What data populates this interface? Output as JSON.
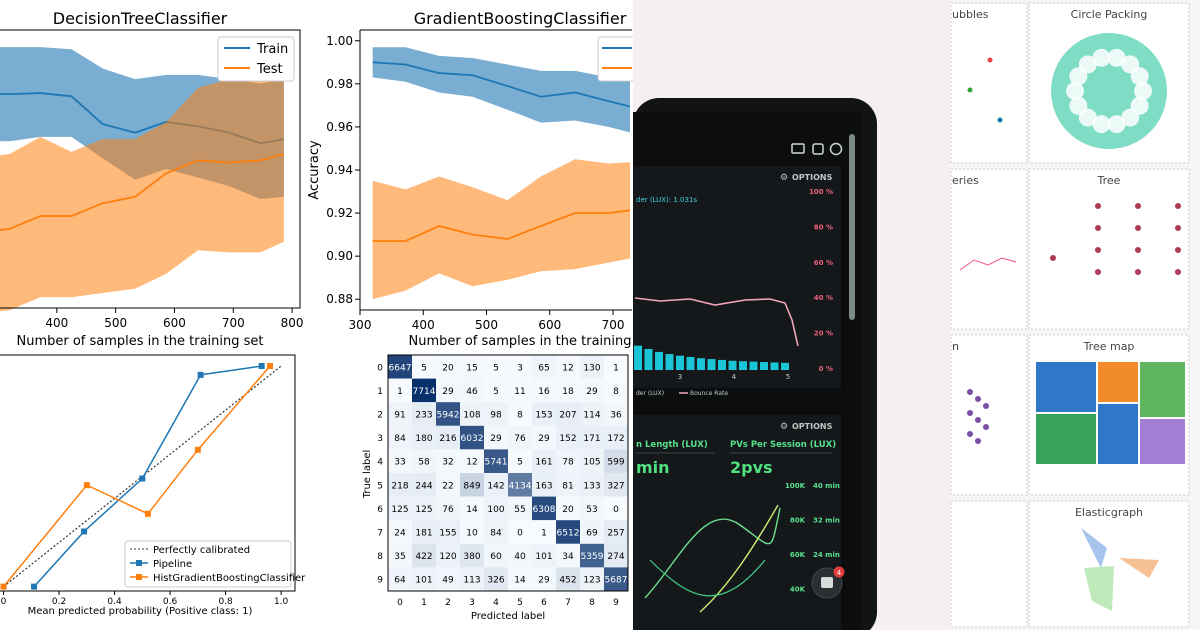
{
  "chart_data": [
    {
      "type": "line",
      "title": "DecisionTreeClassifier",
      "xlabel": "Number of samples in the training set",
      "xlim": [
        300,
        810
      ],
      "ylim": [
        0.875,
        1.005
      ],
      "x": [
        260,
        320,
        372,
        425,
        478,
        533,
        586,
        640,
        693,
        746,
        786
      ],
      "xticks": [
        400,
        500,
        600,
        700,
        800
      ],
      "series": [
        {
          "name": "Train",
          "color": "#1f77b4",
          "mean": [
            0.975,
            0.975,
            0.9755,
            0.974,
            0.961,
            0.957,
            0.962,
            0.96,
            0.957,
            0.952,
            0.954
          ],
          "upper": [
            0.997,
            0.997,
            0.997,
            0.996,
            0.987,
            0.982,
            0.984,
            0.984,
            0.982,
            0.98,
            0.982
          ],
          "lower": [
            0.953,
            0.953,
            0.955,
            0.955,
            0.945,
            0.935,
            0.94,
            0.936,
            0.932,
            0.926,
            0.927
          ]
        },
        {
          "name": "Test",
          "color": "#ff7f0e",
          "mean": [
            0.91,
            0.912,
            0.918,
            0.918,
            0.924,
            0.927,
            0.938,
            0.944,
            0.943,
            0.944,
            0.947
          ],
          "upper": [
            0.945,
            0.947,
            0.955,
            0.948,
            0.954,
            0.954,
            0.962,
            0.978,
            0.982,
            0.988,
            0.996
          ],
          "lower": [
            0.872,
            0.874,
            0.88,
            0.88,
            0.882,
            0.884,
            0.891,
            0.902,
            0.901,
            0.901,
            0.906
          ]
        }
      ]
    },
    {
      "type": "line",
      "title": "GradientBoostingClassifier",
      "xlabel": "Number of samples in the training set",
      "ylabel": "Accuracy",
      "xlim": [
        300,
        730
      ],
      "ylim": [
        0.875,
        1.005
      ],
      "x": [
        320,
        372,
        425,
        478,
        533,
        586,
        640,
        693,
        746
      ],
      "xticks": [
        300,
        400,
        500,
        600,
        700
      ],
      "yticks": [
        0.88,
        0.9,
        0.92,
        0.94,
        0.96,
        0.98,
        1.0
      ],
      "series": [
        {
          "name": "Train",
          "color": "#1f77b4",
          "mean": [
            0.99,
            0.989,
            0.985,
            0.984,
            0.979,
            0.974,
            0.976,
            0.972,
            0.968
          ],
          "upper": [
            0.997,
            0.997,
            0.993,
            0.992,
            0.989,
            0.986,
            0.986,
            0.983,
            0.98
          ],
          "lower": [
            0.983,
            0.981,
            0.976,
            0.974,
            0.968,
            0.962,
            0.963,
            0.96,
            0.956
          ]
        },
        {
          "name": "Test",
          "color": "#ff7f0e",
          "mean": [
            0.907,
            0.907,
            0.914,
            0.91,
            0.908,
            0.914,
            0.92,
            0.92,
            0.922
          ],
          "upper": [
            0.935,
            0.931,
            0.937,
            0.932,
            0.926,
            0.937,
            0.945,
            0.943,
            0.944
          ],
          "lower": [
            0.88,
            0.884,
            0.892,
            0.886,
            0.889,
            0.893,
            0.894,
            0.897,
            0.9
          ]
        }
      ]
    },
    {
      "type": "line",
      "xlabel": "Mean predicted probability (Positive class: 1)",
      "xlim": [
        -0.02,
        1.05
      ],
      "ylim": [
        -0.02,
        1.05
      ],
      "xticks": [
        0.0,
        0.2,
        0.4,
        0.6,
        0.8,
        1.0
      ],
      "xtick_labels": [
        "0",
        "0.2",
        "0.4",
        "0.6",
        "0.8",
        "1.0"
      ],
      "legend": [
        "Perfectly calibrated",
        "Pipeline",
        "HistGradientBoostingClassifier"
      ],
      "series": [
        {
          "name": "Perfectly calibrated",
          "color": "#333333",
          "style": "dotted",
          "x": [
            0,
            1
          ],
          "y": [
            0,
            1
          ]
        },
        {
          "name": "Pipeline",
          "color": "#1f77b4",
          "x": [
            0.11,
            0.29,
            0.5,
            0.71,
            0.93
          ],
          "y": [
            0.0,
            0.25,
            0.49,
            0.96,
            1.0
          ]
        },
        {
          "name": "HistGradientBoostingClassifier",
          "color": "#ff7f0e",
          "x": [
            0.0,
            0.3,
            0.52,
            0.7,
            0.96
          ],
          "y": [
            0.0,
            0.46,
            0.33,
            0.62,
            1.0
          ]
        }
      ]
    },
    {
      "type": "heatmap",
      "xlabel": "Predicted label",
      "ylabel": "True label",
      "labels": [
        "0",
        "1",
        "2",
        "3",
        "4",
        "5",
        "6",
        "7",
        "8",
        "9"
      ],
      "matrix": [
        [
          6647,
          5,
          20,
          15,
          5,
          3,
          65,
          12,
          130,
          1
        ],
        [
          1,
          7714,
          29,
          46,
          5,
          11,
          16,
          18,
          29,
          8
        ],
        [
          91,
          233,
          5942,
          108,
          98,
          8,
          153,
          207,
          114,
          36
        ],
        [
          84,
          180,
          216,
          6032,
          29,
          76,
          29,
          152,
          171,
          172
        ],
        [
          33,
          58,
          32,
          12,
          5741,
          5,
          161,
          78,
          105,
          599
        ],
        [
          218,
          244,
          22,
          849,
          142,
          4134,
          163,
          81,
          133,
          327
        ],
        [
          125,
          125,
          76,
          14,
          100,
          55,
          6308,
          20,
          53,
          0
        ],
        [
          24,
          181,
          155,
          10,
          84,
          0,
          1,
          6512,
          69,
          257
        ],
        [
          35,
          422,
          120,
          380,
          60,
          40,
          101,
          34,
          5359,
          274
        ],
        [
          64,
          101,
          49,
          113,
          326,
          14,
          29,
          452,
          123,
          5687
        ]
      ]
    },
    {
      "type": "line",
      "ylim": [
        0,
        100
      ],
      "yticks": [
        "100 %",
        "80 %",
        "60 %",
        "40 %",
        "20 %",
        "0 %"
      ],
      "x_tick_labels": [
        "3",
        "4",
        "5"
      ],
      "series": [
        {
          "name": "Bounce Rate",
          "color": "#f0a6b8"
        }
      ],
      "bars_color": "#19c5d6",
      "bars": [
        58,
        50,
        43,
        38,
        34,
        31,
        28,
        26,
        24,
        22,
        21,
        20,
        19,
        18,
        17
      ]
    }
  ],
  "dashboard": {
    "options_top": "OPTIONS",
    "options_bottom": "OPTIONS",
    "load_label": "der (LUX): 1.031s",
    "legend_left": "der (LUX)",
    "legend_right": "Bounce Rate",
    "metric1_label": "n Length (LUX)",
    "metric1_value": "min",
    "metric2_label": "PVs Per Session (LUX)",
    "metric2_value": "2pvs",
    "right_axis": [
      "100K",
      "80K",
      "60K",
      "40K"
    ],
    "right_axis2": [
      "40 min",
      "32 min",
      "24 min"
    ],
    "notif_count": "4"
  },
  "gallery": {
    "cells": [
      "ubbles",
      "Circle Packing",
      "eries",
      "Tree",
      "n",
      "Tree map",
      "",
      "Elasticgraph"
    ]
  }
}
